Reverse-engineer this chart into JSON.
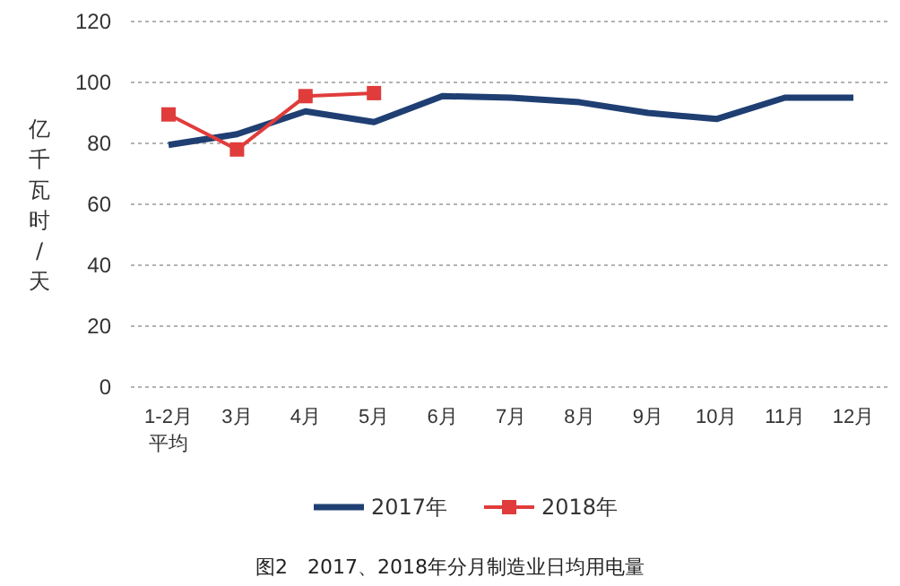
{
  "chart_data": {
    "type": "line",
    "title": "图2　2017、2018年分月制造业日均用电量",
    "ylabel": "亿千瓦时/天",
    "categories": [
      "1-2月平均",
      "3月",
      "4月",
      "5月",
      "6月",
      "7月",
      "8月",
      "9月",
      "10月",
      "11月",
      "12月"
    ],
    "series": [
      {
        "name": "2017年",
        "color": "#1f3f73",
        "marker": "none",
        "values": [
          79.5,
          83,
          90.5,
          87,
          95.5,
          95,
          93.5,
          90,
          88,
          95,
          95
        ]
      },
      {
        "name": "2018年",
        "color": "#e03c3c",
        "marker": "square",
        "values": [
          89.5,
          78,
          95.5,
          96.5,
          null,
          null,
          null,
          null,
          null,
          null,
          null
        ]
      }
    ],
    "ylim": [
      0,
      120
    ],
    "yticks": [
      0,
      20,
      40,
      60,
      80,
      100,
      120
    ],
    "grid": "y",
    "legend": "bottom"
  }
}
